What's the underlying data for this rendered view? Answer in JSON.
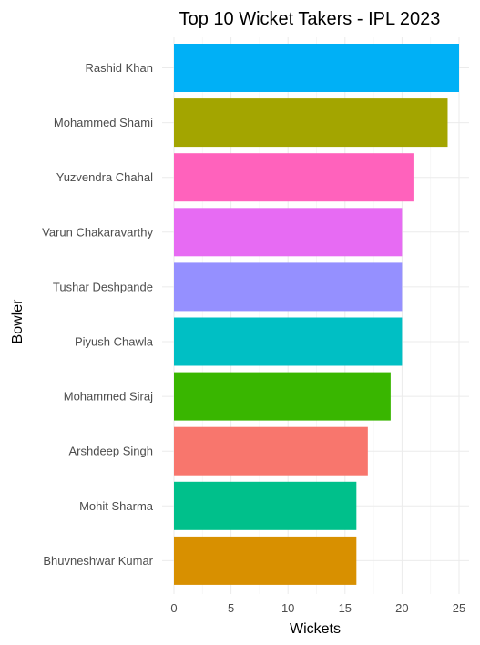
{
  "chart_data": {
    "type": "bar",
    "orientation": "horizontal",
    "title": "Top 10 Wicket Takers - IPL 2023",
    "xlabel": "Wickets",
    "ylabel": "Bowler",
    "xlim": [
      0,
      25.5
    ],
    "x_ticks": [
      "0",
      "5",
      "10",
      "15",
      "20",
      "25"
    ],
    "grid": true,
    "legend": "none",
    "categories": [
      "Rashid Khan",
      "Mohammed Shami",
      "Yuzvendra Chahal",
      "Varun Chakaravarthy",
      "Tushar Deshpande",
      "Piyush Chawla",
      "Mohammed Siraj",
      "Arshdeep Singh",
      "Mohit Sharma",
      "Bhuvneshwar Kumar"
    ],
    "values": [
      25,
      24,
      21,
      20,
      20,
      20,
      19,
      17,
      16,
      16
    ],
    "colors": [
      "#00B0F6",
      "#A3A500",
      "#FF62BC",
      "#E76BF3",
      "#9590FF",
      "#00BFC4",
      "#39B600",
      "#F8766D",
      "#00C08B",
      "#D89000"
    ]
  }
}
